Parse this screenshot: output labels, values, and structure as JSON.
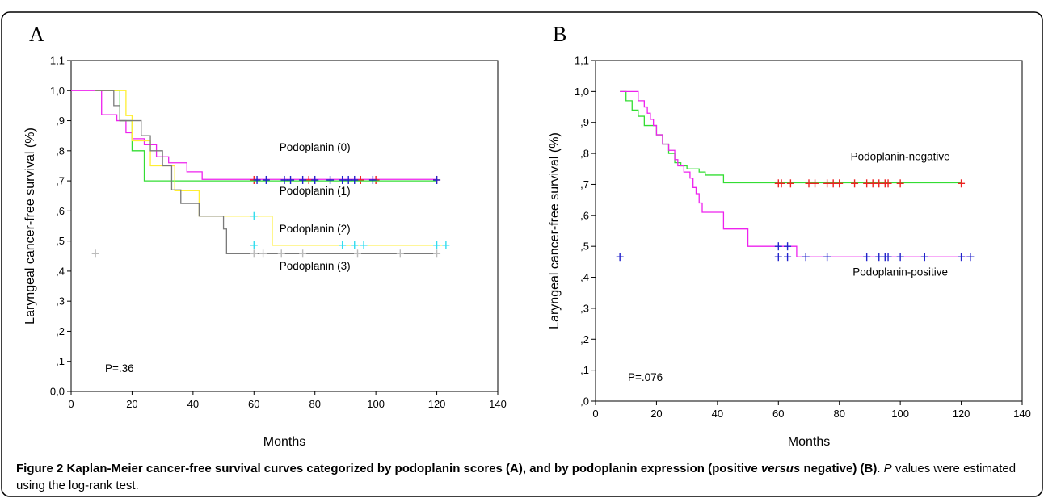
{
  "caption": {
    "fig_label": "Figure 2",
    "bold_text_1": "Kaplan-Meier cancer-free survival curves categorized by podoplanin scores (A), and by podoplanin expression (positive",
    "italic_word": "versus",
    "bold_text_2": "negative) (B)",
    "sep": ".",
    "p_symbol": "P",
    "rest": "values were estimated using the log-rank test."
  },
  "colors": {
    "green": "#33dd33",
    "magenta": "#ee22ee",
    "yellow": "#ffee33",
    "gray": "#7a7a7a",
    "red": "#ee2222",
    "blue": "#2222cc",
    "cyan": "#33ddee",
    "lightgray": "#bbbbbb"
  },
  "chart_data": [
    {
      "panel": "A",
      "type": "line",
      "step": true,
      "ylabel": "Laryngeal cancer-free survival (%)",
      "xlabel": "Months",
      "xlim": [
        0,
        140
      ],
      "ylim": [
        0,
        1.1
      ],
      "xticks": [
        "0",
        "20",
        "40",
        "60",
        "80",
        "100",
        "120",
        "140"
      ],
      "yticks": [
        "0,0",
        ",1",
        ",2",
        ",3",
        ",4",
        ",5",
        ",6",
        ",7",
        ",8",
        ",9",
        "1,0",
        "1,1"
      ],
      "annotation": "P=.36",
      "series": [
        {
          "name": "Podoplanin (0)",
          "color": "#ee22ee",
          "censor_color": "#ee2222",
          "x": [
            0,
            10,
            12,
            15,
            18,
            20,
            24,
            28,
            32,
            38,
            43,
            120
          ],
          "y": [
            1.0,
            0.92,
            0.92,
            0.9,
            0.86,
            0.84,
            0.82,
            0.78,
            0.76,
            0.73,
            0.705,
            0.705
          ],
          "censored_x": [
            60,
            78,
            95,
            100,
            120
          ],
          "censored_y": 0.703
        },
        {
          "name": "Podoplanin (1)",
          "color": "#33dd33",
          "censor_color": "#2222cc",
          "x": [
            8,
            16,
            20,
            24,
            120
          ],
          "y": [
            1.0,
            0.9,
            0.8,
            0.7,
            0.7
          ],
          "censored_x": [
            61,
            64,
            70,
            72,
            76,
            80,
            85,
            89,
            91,
            93,
            99,
            120
          ],
          "censored_y": 0.703
        },
        {
          "name": "Podoplanin (2)",
          "color": "#ffee33",
          "censor_color": "#33ddee",
          "x": [
            8,
            18,
            20,
            26,
            34,
            42,
            66,
            123
          ],
          "y": [
            1.0,
            0.917,
            0.833,
            0.75,
            0.667,
            0.583,
            0.486,
            0.486
          ],
          "censored_x": [
            60,
            89,
            93,
            96,
            120,
            123
          ],
          "censored_y": 0.486,
          "censored_extra": [
            [
              60,
              0.583
            ]
          ]
        },
        {
          "name": "Podoplanin (3)",
          "color": "#7a7a7a",
          "censor_color": "#bbbbbb",
          "x": [
            8,
            14,
            16,
            23,
            26,
            30,
            33,
            36,
            42,
            50,
            51,
            120
          ],
          "y": [
            1.0,
            0.95,
            0.9,
            0.85,
            0.8,
            0.75,
            0.67,
            0.625,
            0.583,
            0.54,
            0.458,
            0.458
          ],
          "censored_x": [
            8,
            60,
            63,
            69,
            76,
            94,
            108,
            120
          ],
          "censored_y": 0.458
        }
      ],
      "labels": [
        {
          "text": "Podoplanin (0)",
          "x": 80,
          "y": 0.8
        },
        {
          "text": "Podoplanin (1)",
          "x": 80,
          "y": 0.655
        },
        {
          "text": "Podoplanin (2)",
          "x": 80,
          "y": 0.528
        },
        {
          "text": "Podoplanin (3)",
          "x": 80,
          "y": 0.405
        }
      ]
    },
    {
      "panel": "B",
      "type": "line",
      "step": true,
      "ylabel": "Laryngeal cancer-free survival (%)",
      "xlabel": "Months",
      "xlim": [
        0,
        140
      ],
      "ylim": [
        0,
        1.1
      ],
      "xticks": [
        "0",
        "20",
        "40",
        "60",
        "80",
        "100",
        "120",
        "140"
      ],
      "yticks": [
        ",0",
        ",1",
        ",2",
        ",3",
        ",4",
        ",5",
        ",6",
        ",7",
        ",8",
        ",9",
        "1,0",
        "1,1"
      ],
      "annotation": "P=.076",
      "series": [
        {
          "name": "Podoplanin-negative",
          "color": "#33dd33",
          "censor_color": "#ee2222",
          "x": [
            8,
            10,
            12,
            14,
            16,
            20,
            22,
            24,
            26,
            28,
            30,
            34,
            36,
            42,
            120
          ],
          "y": [
            1.0,
            0.97,
            0.94,
            0.92,
            0.89,
            0.86,
            0.83,
            0.8,
            0.77,
            0.76,
            0.75,
            0.74,
            0.73,
            0.705,
            0.705
          ],
          "censored_x": [
            60,
            61,
            64,
            70,
            72,
            76,
            78,
            80,
            85,
            89,
            91,
            93,
            95,
            96,
            100,
            120
          ],
          "censored_y": 0.703
        },
        {
          "name": "Podoplanin-positive",
          "color": "#ee22ee",
          "censor_color": "#2222cc",
          "x": [
            8,
            11,
            14,
            16,
            17,
            18,
            19,
            20,
            22,
            24,
            26,
            27,
            29,
            31,
            32,
            33,
            34,
            35,
            36,
            42,
            50,
            66,
            123
          ],
          "y": [
            1.0,
            1.0,
            0.97,
            0.95,
            0.93,
            0.91,
            0.89,
            0.86,
            0.83,
            0.81,
            0.78,
            0.76,
            0.74,
            0.72,
            0.69,
            0.67,
            0.64,
            0.61,
            0.61,
            0.556,
            0.5,
            0.466,
            0.466
          ],
          "censored_x": [
            8,
            60,
            63,
            69,
            76,
            89,
            93,
            95,
            96,
            100,
            108,
            120,
            123
          ],
          "censored_y": 0.466,
          "censored_extra": [
            [
              60,
              0.5
            ],
            [
              63,
              0.5
            ]
          ]
        }
      ],
      "labels": [
        {
          "text": "Podoplanin-negative",
          "x": 100,
          "y": 0.778
        },
        {
          "text": "Podoplanin-positive",
          "x": 100,
          "y": 0.405
        }
      ]
    }
  ]
}
